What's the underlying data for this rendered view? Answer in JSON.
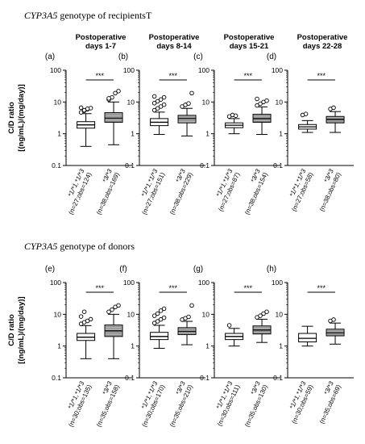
{
  "sections": [
    {
      "title_gene": "CYP3A5",
      "title_rest": " genotype of recipientsT"
    },
    {
      "title_gene": "CYP3A5",
      "title_rest": " genotype of donors"
    }
  ],
  "y_axis_label_line1": "C/D ratio",
  "y_axis_label_line2": "[(ng/mL)/(mg/day)]",
  "sig_label": "***",
  "chart_data": [
    {
      "type": "box",
      "panel": "(a)",
      "title": [
        "Postoperative",
        "days 1-7"
      ],
      "yscale": "log",
      "ylim": [
        0.1,
        100
      ],
      "yticks": [
        "0.1",
        "1",
        "10",
        "100"
      ],
      "categories": [
        "*1/*1,*1/*3",
        "*3/*3"
      ],
      "xlabels": [
        "(n=27;obs=124)",
        "(n=38;obs=169)"
      ],
      "boxes": [
        {
          "whislo": 0.4,
          "q1": 1.5,
          "med": 1.9,
          "q3": 2.4,
          "whishi": 4.3,
          "fliers": [
            4.7,
            5.3,
            5.9,
            6.4,
            6.6,
            5.5,
            6.1
          ]
        },
        {
          "whislo": 0.45,
          "q1": 2.3,
          "med": 3.1,
          "q3": 4.6,
          "whishi": 10,
          "fliers": [
            12,
            14,
            19,
            22,
            13
          ]
        }
      ]
    },
    {
      "type": "box",
      "panel": "(b)",
      "title": [
        "Postoperative",
        "days 8-14"
      ],
      "yscale": "log",
      "ylim": [
        0.1,
        100
      ],
      "yticks": [
        "0.1",
        "1",
        "10",
        "100"
      ],
      "categories": [
        "*1/*1,*1/*3",
        "*3/*3"
      ],
      "xlabels": [
        "(n=27;obs=151)",
        "(n=38;obs=229)"
      ],
      "boxes": [
        {
          "whislo": 0.95,
          "q1": 1.8,
          "med": 2.3,
          "q3": 3.0,
          "whishi": 4.8,
          "fliers": [
            5.5,
            6.3,
            7.2,
            8.2,
            9.2,
            10.5,
            12,
            14,
            15
          ]
        },
        {
          "whislo": 0.85,
          "q1": 2.2,
          "med": 3.0,
          "q3": 3.8,
          "whishi": 6.3,
          "fliers": [
            7.2,
            8.1,
            9.0,
            19
          ]
        }
      ]
    },
    {
      "type": "box",
      "panel": "(c)",
      "title": [
        "Postoperative",
        "days 15-21"
      ],
      "yscale": "log",
      "ylim": [
        0.1,
        100
      ],
      "yticks": [
        "0.1",
        "1",
        "10",
        "100"
      ],
      "categories": [
        "*1/*1,*1/*3",
        "*3/*3"
      ],
      "xlabels": [
        "(n=27;obs=87)",
        "(n=38;obs=154)"
      ],
      "boxes": [
        {
          "whislo": 1.0,
          "q1": 1.55,
          "med": 1.85,
          "q3": 2.2,
          "whishi": 3.0,
          "fliers": [
            3.5,
            3.9,
            3.7
          ]
        },
        {
          "whislo": 0.95,
          "q1": 2.3,
          "med": 3.0,
          "q3": 4.1,
          "whishi": 7.0,
          "fliers": [
            7.8,
            8.8,
            10,
            11,
            12.5
          ]
        }
      ]
    },
    {
      "type": "box",
      "panel": "(d)",
      "title": [
        "Postoperative",
        "days 22-28"
      ],
      "yscale": "log",
      "ylim": [
        0.1,
        100
      ],
      "yticks": [
        "0.1",
        "1",
        "10",
        "100"
      ],
      "categories": [
        "*1/*1,*1/*3",
        "*3/*3"
      ],
      "xlabels": [
        "(n=27;obs=58)",
        "(n=38;obs=80)"
      ],
      "boxes": [
        {
          "whislo": 1.1,
          "q1": 1.4,
          "med": 1.65,
          "q3": 1.95,
          "whishi": 2.6,
          "fliers": [
            3.9,
            4.2
          ]
        },
        {
          "whislo": 1.1,
          "q1": 2.2,
          "med": 2.8,
          "q3": 3.5,
          "whishi": 5.0,
          "fliers": [
            6.0,
            6.6
          ]
        }
      ]
    },
    {
      "type": "box",
      "panel": "(e)",
      "title": [],
      "yscale": "log",
      "ylim": [
        0.1,
        100
      ],
      "yticks": [
        "0.1",
        "1",
        "10",
        "100"
      ],
      "categories": [
        "*1/*1,*1/*3",
        "*3/*3"
      ],
      "xlabels": [
        "(n=30;obs=135)",
        "(n=35;obs=158)"
      ],
      "boxes": [
        {
          "whislo": 0.4,
          "q1": 1.5,
          "med": 1.9,
          "q3": 2.5,
          "whishi": 4.4,
          "fliers": [
            5.0,
            5.6,
            6.2,
            7.0,
            8.5,
            12
          ]
        },
        {
          "whislo": 0.4,
          "q1": 2.0,
          "med": 3.0,
          "q3": 4.6,
          "whishi": 10,
          "fliers": [
            12,
            14,
            17,
            19
          ]
        }
      ]
    },
    {
      "type": "box",
      "panel": "(f)",
      "title": [],
      "yscale": "log",
      "ylim": [
        0.1,
        100
      ],
      "yticks": [
        "0.1",
        "1",
        "10",
        "100"
      ],
      "categories": [
        "*1/*1,*1/*3",
        "*3/*3"
      ],
      "xlabels": [
        "(n=30;obs=170)",
        "(n=35;obs=210)"
      ],
      "boxes": [
        {
          "whislo": 0.85,
          "q1": 1.6,
          "med": 2.0,
          "q3": 2.7,
          "whishi": 4.5,
          "fliers": [
            5.3,
            6.0,
            6.9,
            7.8,
            9.0,
            10.5,
            13,
            15
          ]
        },
        {
          "whislo": 1.1,
          "q1": 2.3,
          "med": 2.9,
          "q3": 3.8,
          "whishi": 6.0,
          "fliers": [
            6.8,
            7.5,
            8.3,
            19
          ]
        }
      ]
    },
    {
      "type": "box",
      "panel": "(g)",
      "title": [],
      "yscale": "log",
      "ylim": [
        0.1,
        100
      ],
      "yticks": [
        "0.1",
        "1",
        "10",
        "100"
      ],
      "categories": [
        "*1/*1,*1/*3",
        "*3/*3"
      ],
      "xlabels": [
        "(n=30;obs=111)",
        "(n=35;obs=130)"
      ],
      "boxes": [
        {
          "whislo": 1.0,
          "q1": 1.6,
          "med": 2.0,
          "q3": 2.5,
          "whishi": 3.6,
          "fliers": [
            4.5
          ]
        },
        {
          "whislo": 1.3,
          "q1": 2.4,
          "med": 3.2,
          "q3": 4.3,
          "whishi": 7.0,
          "fliers": [
            8.0,
            9.0,
            10.5,
            12
          ]
        }
      ]
    },
    {
      "type": "box",
      "panel": "(h)",
      "title": [],
      "yscale": "log",
      "ylim": [
        0.1,
        100
      ],
      "yticks": [
        "0.1",
        "1",
        "10",
        "100"
      ],
      "categories": [
        "*1/*1,*1/*3",
        "*3/*3"
      ],
      "xlabels": [
        "(n=30;obs=59)",
        "(n=35;obs=69)"
      ],
      "boxes": [
        {
          "whislo": 1.0,
          "q1": 1.35,
          "med": 1.75,
          "q3": 2.5,
          "whishi": 4.2,
          "fliers": []
        },
        {
          "whislo": 1.15,
          "q1": 2.1,
          "med": 2.6,
          "q3": 3.4,
          "whishi": 5.3,
          "fliers": [
            6.2,
            6.8
          ]
        }
      ]
    }
  ]
}
